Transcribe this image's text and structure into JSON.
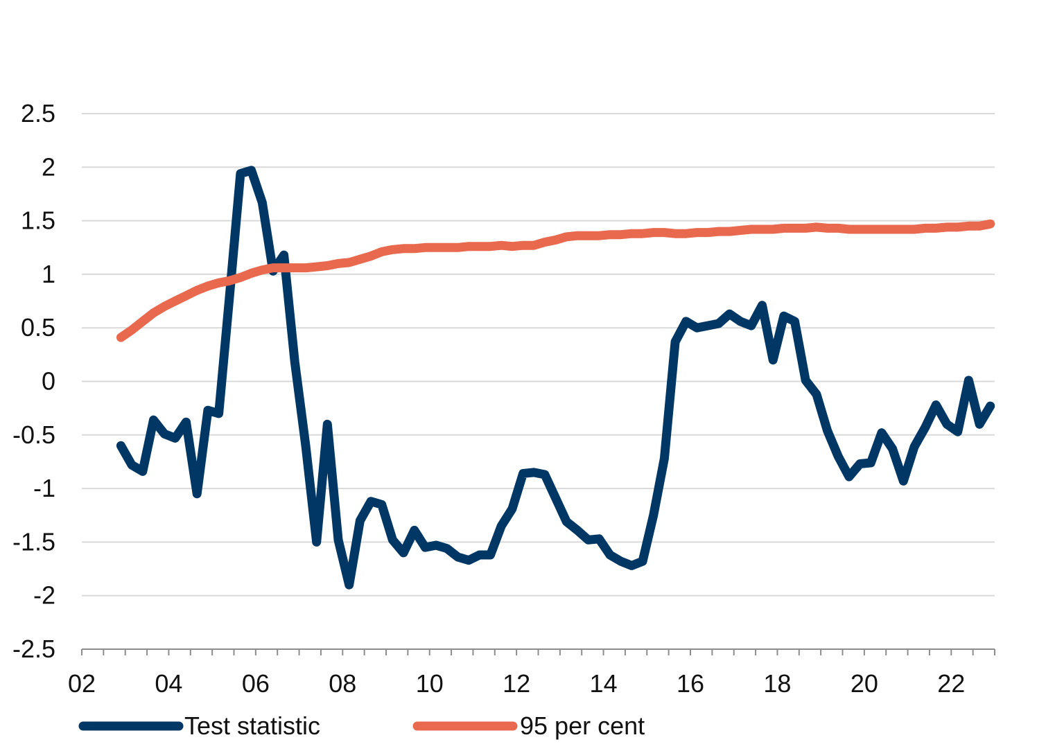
{
  "chart_data": {
    "type": "line",
    "title": "",
    "xlabel": "",
    "ylabel": "",
    "x_range": [
      2002.0,
      2023.0
    ],
    "ylim": [
      -2.5,
      2.5
    ],
    "y_ticks": [
      2.5,
      2,
      1.5,
      1,
      0.5,
      0,
      -0.5,
      -1,
      -1.5,
      -2,
      -2.5
    ],
    "y_tick_labels": [
      "2.5",
      "2",
      "1.5",
      "1",
      "0.5",
      "0",
      "-0.5",
      "-1",
      "-1.5",
      "-2",
      "-2.5"
    ],
    "x_ticks": [
      2002,
      2004,
      2006,
      2008,
      2010,
      2012,
      2014,
      2016,
      2018,
      2020,
      2022
    ],
    "x_tick_labels": [
      "02",
      "04",
      "06",
      "08",
      "10",
      "12",
      "14",
      "16",
      "18",
      "20",
      "22"
    ],
    "grid": "horizontal",
    "legend_position": "bottom",
    "series": [
      {
        "name": "Test statistic",
        "color": "#003764",
        "x": [
          2002.9,
          2003.15,
          2003.4,
          2003.65,
          2003.9,
          2004.15,
          2004.4,
          2004.65,
          2004.9,
          2005.15,
          2005.4,
          2005.65,
          2005.9,
          2006.15,
          2006.4,
          2006.65,
          2006.9,
          2007.15,
          2007.4,
          2007.65,
          2007.9,
          2008.15,
          2008.4,
          2008.65,
          2008.9,
          2009.15,
          2009.4,
          2009.65,
          2009.9,
          2010.15,
          2010.4,
          2010.65,
          2010.9,
          2011.15,
          2011.4,
          2011.65,
          2011.9,
          2012.15,
          2012.4,
          2012.65,
          2012.9,
          2013.15,
          2013.4,
          2013.65,
          2013.9,
          2014.15,
          2014.4,
          2014.65,
          2014.9,
          2015.15,
          2015.4,
          2015.65,
          2015.9,
          2016.15,
          2016.4,
          2016.65,
          2016.9,
          2017.15,
          2017.4,
          2017.65,
          2017.9,
          2018.15,
          2018.4,
          2018.65,
          2018.9,
          2019.15,
          2019.4,
          2019.65,
          2019.9,
          2020.15,
          2020.4,
          2020.65,
          2020.9,
          2021.15,
          2021.4,
          2021.65,
          2021.9,
          2022.15,
          2022.4,
          2022.65,
          2022.9
        ],
        "values": [
          -0.6,
          -0.78,
          -0.84,
          -0.36,
          -0.49,
          -0.53,
          -0.38,
          -1.05,
          -0.27,
          -0.3,
          0.8,
          1.94,
          1.97,
          1.67,
          1.03,
          1.18,
          0.18,
          -0.6,
          -1.5,
          -0.4,
          -1.48,
          -1.9,
          -1.3,
          -1.12,
          -1.15,
          -1.48,
          -1.6,
          -1.39,
          -1.55,
          -1.53,
          -1.56,
          -1.64,
          -1.67,
          -1.62,
          -1.62,
          -1.35,
          -1.19,
          -0.86,
          -0.85,
          -0.87,
          -1.09,
          -1.31,
          -1.39,
          -1.48,
          -1.47,
          -1.62,
          -1.68,
          -1.72,
          -1.68,
          -1.25,
          -0.72,
          0.37,
          0.56,
          0.5,
          0.52,
          0.54,
          0.63,
          0.56,
          0.52,
          0.71,
          0.2,
          0.61,
          0.56,
          0.01,
          -0.12,
          -0.46,
          -0.7,
          -0.89,
          -0.77,
          -0.76,
          -0.48,
          -0.63,
          -0.93,
          -0.61,
          -0.43,
          -0.22,
          -0.4,
          -0.47,
          0.01,
          -0.4,
          -0.23
        ]
      },
      {
        "name": "95 per cent",
        "color": "#E8694E",
        "x": [
          2002.9,
          2003.15,
          2003.4,
          2003.65,
          2003.9,
          2004.15,
          2004.4,
          2004.65,
          2004.9,
          2005.15,
          2005.4,
          2005.65,
          2005.9,
          2006.15,
          2006.4,
          2006.65,
          2006.9,
          2007.15,
          2007.4,
          2007.65,
          2007.9,
          2008.15,
          2008.4,
          2008.65,
          2008.9,
          2009.15,
          2009.4,
          2009.65,
          2009.9,
          2010.15,
          2010.4,
          2010.65,
          2010.9,
          2011.15,
          2011.4,
          2011.65,
          2011.9,
          2012.15,
          2012.4,
          2012.65,
          2012.9,
          2013.15,
          2013.4,
          2013.65,
          2013.9,
          2014.15,
          2014.4,
          2014.65,
          2014.9,
          2015.15,
          2015.4,
          2015.65,
          2015.9,
          2016.15,
          2016.4,
          2016.65,
          2016.9,
          2017.15,
          2017.4,
          2017.65,
          2017.9,
          2018.15,
          2018.4,
          2018.65,
          2018.9,
          2019.15,
          2019.4,
          2019.65,
          2019.9,
          2020.15,
          2020.4,
          2020.65,
          2020.9,
          2021.15,
          2021.4,
          2021.65,
          2021.9,
          2022.15,
          2022.4,
          2022.65,
          2022.9
        ],
        "values": [
          0.41,
          0.48,
          0.56,
          0.64,
          0.7,
          0.75,
          0.8,
          0.85,
          0.89,
          0.92,
          0.94,
          0.97,
          1.01,
          1.04,
          1.06,
          1.06,
          1.06,
          1.06,
          1.07,
          1.08,
          1.1,
          1.11,
          1.14,
          1.17,
          1.21,
          1.23,
          1.24,
          1.24,
          1.25,
          1.25,
          1.25,
          1.25,
          1.26,
          1.26,
          1.26,
          1.27,
          1.26,
          1.27,
          1.27,
          1.3,
          1.32,
          1.35,
          1.36,
          1.36,
          1.36,
          1.37,
          1.37,
          1.38,
          1.38,
          1.39,
          1.39,
          1.38,
          1.38,
          1.39,
          1.39,
          1.4,
          1.4,
          1.41,
          1.42,
          1.42,
          1.42,
          1.43,
          1.43,
          1.43,
          1.44,
          1.43,
          1.43,
          1.42,
          1.42,
          1.42,
          1.42,
          1.42,
          1.42,
          1.42,
          1.43,
          1.43,
          1.44,
          1.44,
          1.45,
          1.45,
          1.47
        ]
      }
    ]
  }
}
